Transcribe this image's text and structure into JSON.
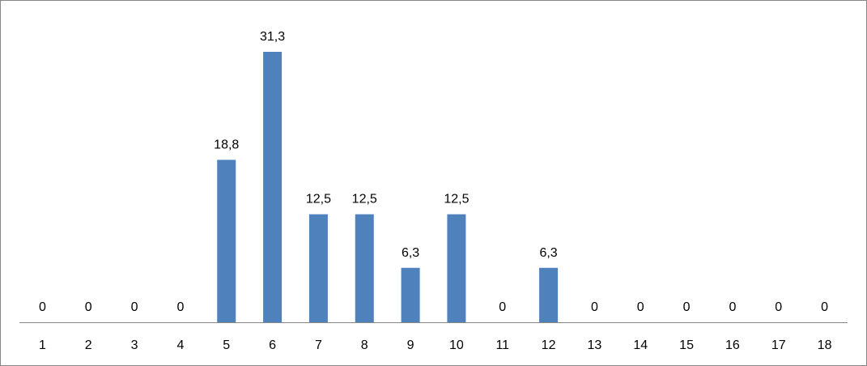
{
  "chart_data": {
    "type": "bar",
    "categories": [
      "1",
      "2",
      "3",
      "4",
      "5",
      "6",
      "7",
      "8",
      "9",
      "10",
      "11",
      "12",
      "13",
      "14",
      "15",
      "16",
      "17",
      "18"
    ],
    "values": [
      0,
      0,
      0,
      0,
      18.8,
      31.3,
      12.5,
      12.5,
      6.3,
      12.5,
      0,
      6.3,
      0,
      0,
      0,
      0,
      0,
      0
    ],
    "data_labels": [
      "0",
      "0",
      "0",
      "0",
      "18,8",
      "31,3",
      "12,5",
      "12,5",
      "6,3",
      "12,5",
      "0",
      "6,3",
      "0",
      "0",
      "0",
      "0",
      "0",
      "0"
    ],
    "title": "",
    "xlabel": "",
    "ylabel": "",
    "ylim": [
      0,
      31.3
    ],
    "grid": false,
    "legend": "none",
    "bar_color": "#4f81bd",
    "axis_color": "#868686"
  }
}
